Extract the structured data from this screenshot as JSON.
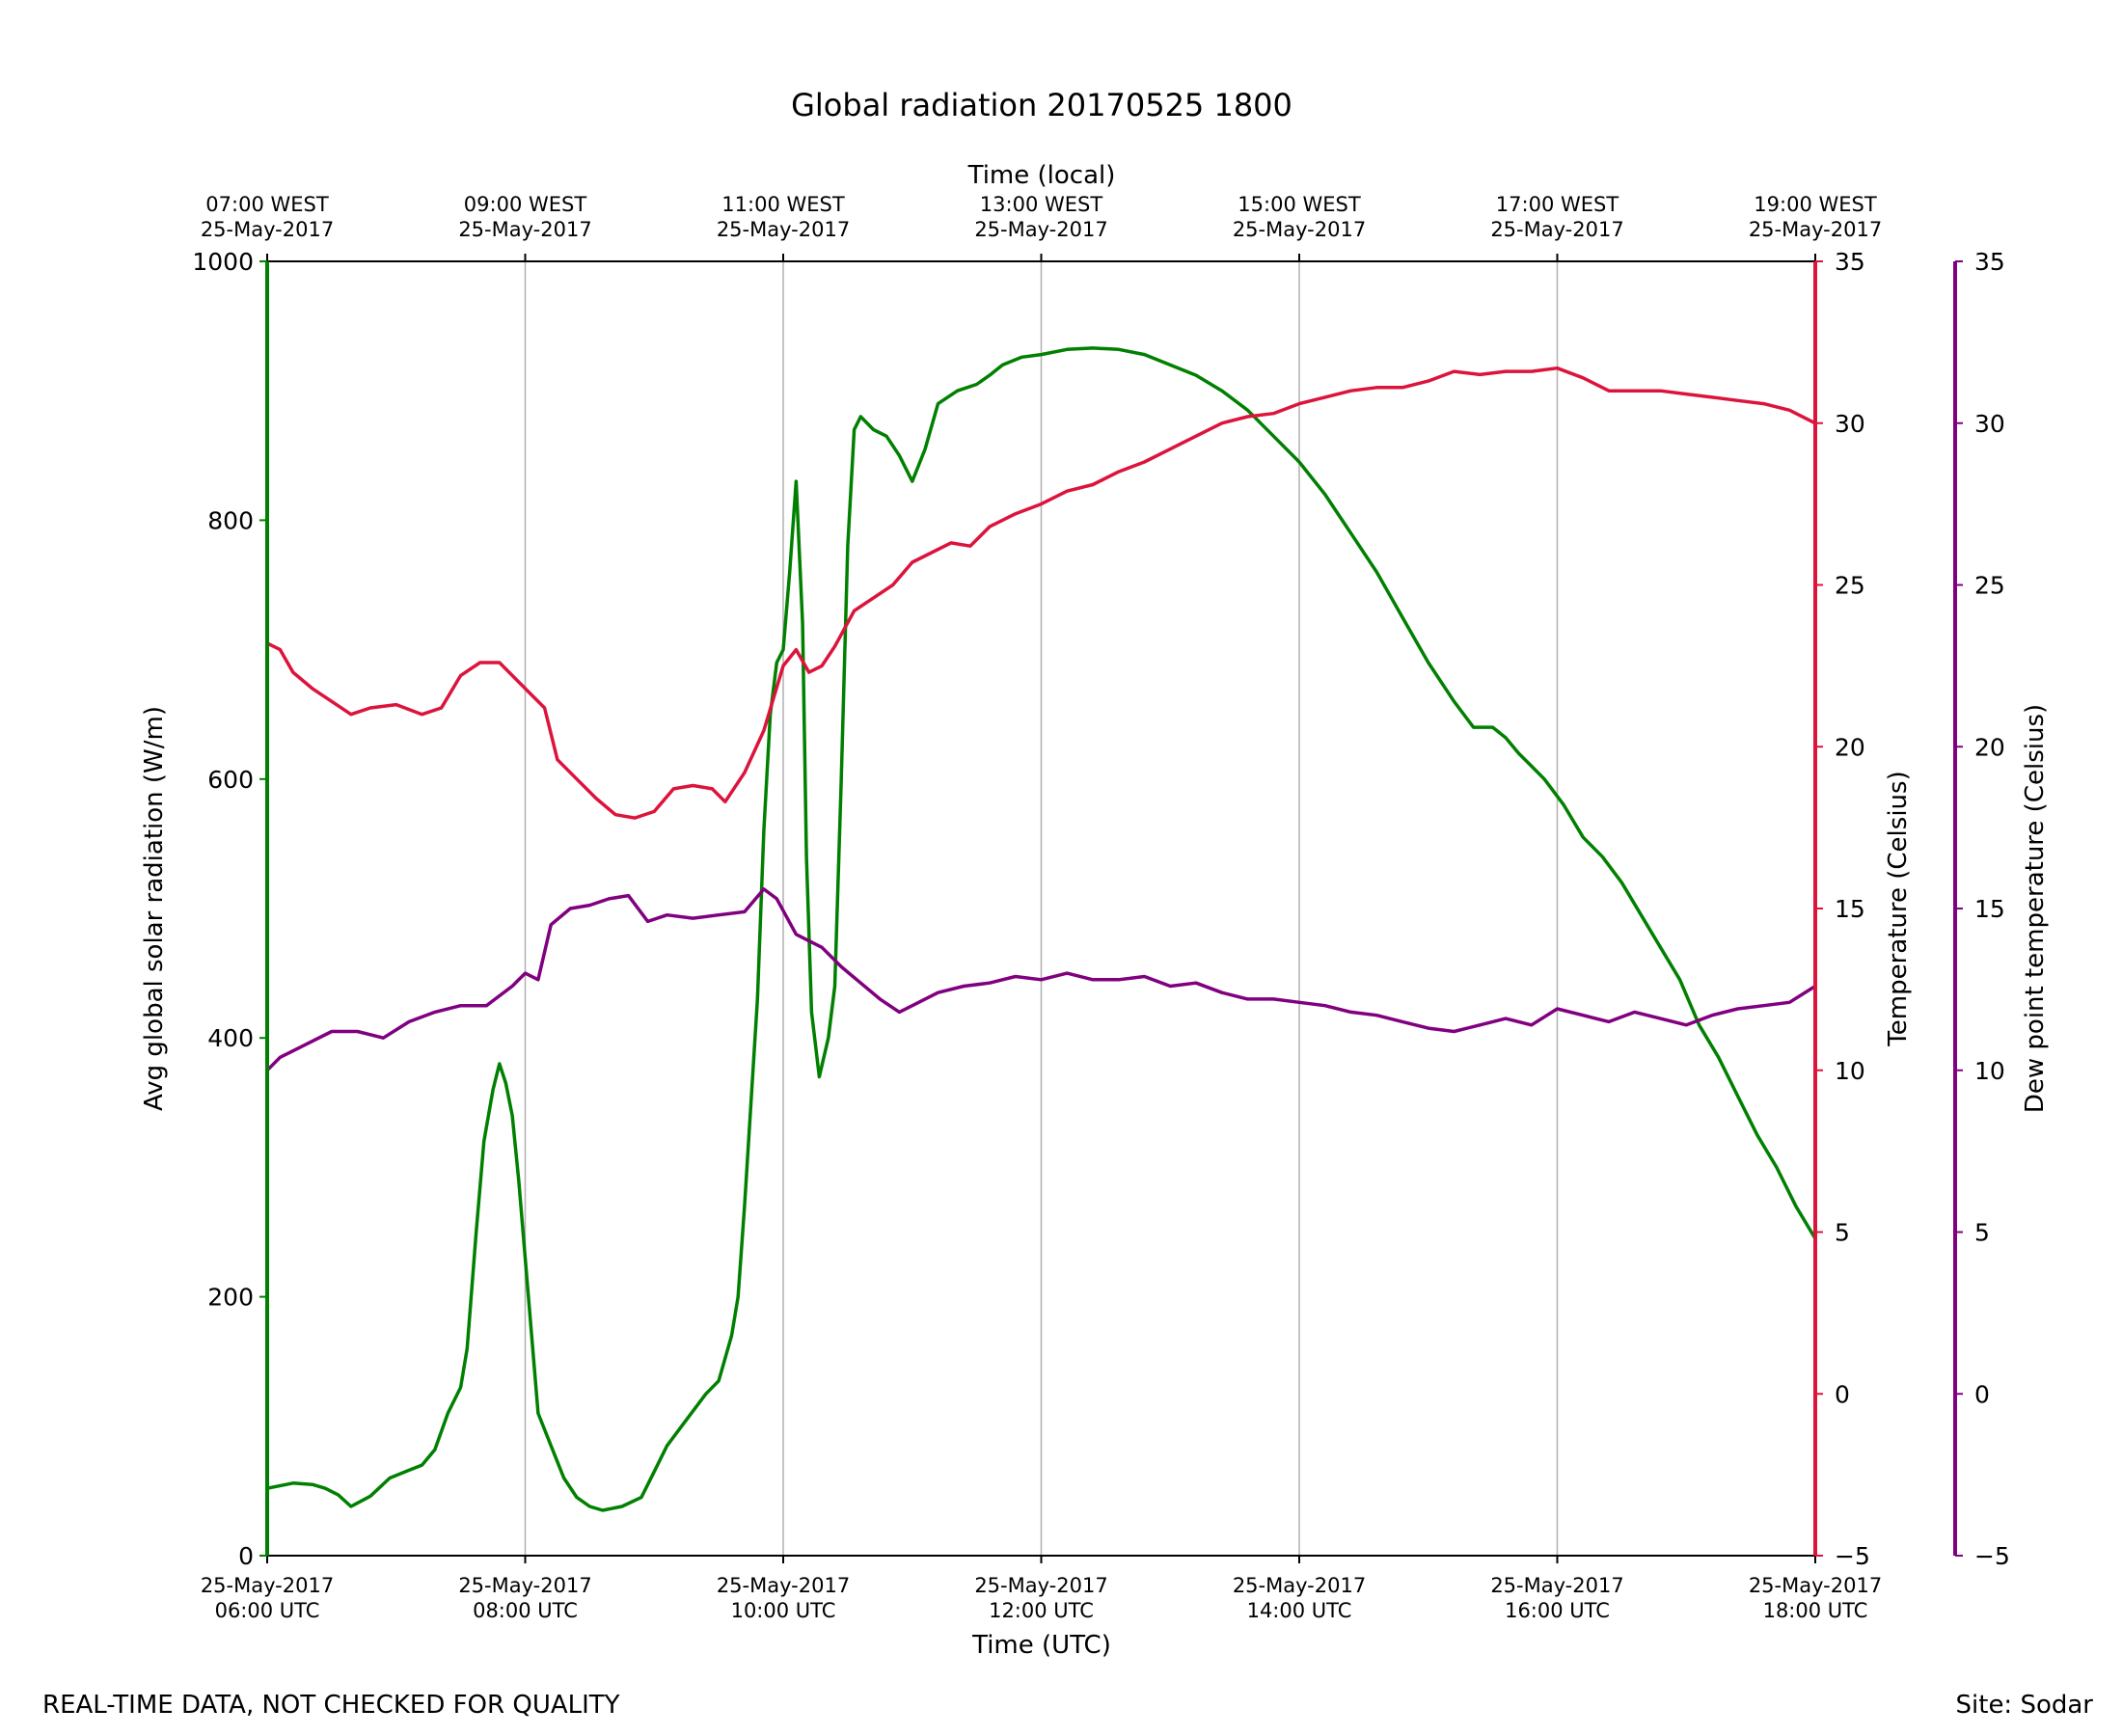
{
  "chart_data": {
    "type": "line",
    "title": "Global radiation 20170525 1800",
    "xlabel": "Time (UTC)",
    "x2label": "Time (local)",
    "xlim_utc_hours": [
      6,
      18
    ],
    "x_ticks": [
      {
        "hour": 6,
        "date": "25-May-2017",
        "utc": "06:00 UTC",
        "local": "07:00 WEST"
      },
      {
        "hour": 8,
        "date": "25-May-2017",
        "utc": "08:00 UTC",
        "local": "09:00 WEST"
      },
      {
        "hour": 10,
        "date": "25-May-2017",
        "utc": "10:00 UTC",
        "local": "11:00 WEST"
      },
      {
        "hour": 12,
        "date": "25-May-2017",
        "utc": "12:00 UTC",
        "local": "13:00 WEST"
      },
      {
        "hour": 14,
        "date": "25-May-2017",
        "utc": "14:00 UTC",
        "local": "15:00 WEST"
      },
      {
        "hour": 16,
        "date": "25-May-2017",
        "utc": "16:00 UTC",
        "local": "17:00 WEST"
      },
      {
        "hour": 18,
        "date": "25-May-2017",
        "utc": "18:00 UTC",
        "local": "19:00 WEST"
      }
    ],
    "axes": {
      "radiation": {
        "label": "Avg global solar radiation (W/m)",
        "color": "#008000",
        "ylim": [
          0,
          1000
        ],
        "ticks": [
          0,
          200,
          400,
          600,
          800,
          1000
        ]
      },
      "temperature": {
        "label": "Temperature (Celsius)",
        "color": "#dc143c",
        "ylim": [
          -5,
          35
        ],
        "ticks": [
          -5,
          0,
          5,
          10,
          15,
          20,
          25,
          30,
          35
        ]
      },
      "dewpoint": {
        "label": "Dew point temperature (Celsius)",
        "color": "#800080",
        "ylim": [
          -5,
          35
        ],
        "ticks": [
          -5,
          0,
          5,
          10,
          15,
          20,
          25,
          30,
          35
        ]
      }
    },
    "grid": "vertical",
    "series": [
      {
        "name": "Avg global solar radiation",
        "axis": "radiation",
        "color": "#008000",
        "points": [
          [
            6.0,
            52
          ],
          [
            6.2,
            56
          ],
          [
            6.35,
            55
          ],
          [
            6.45,
            52
          ],
          [
            6.55,
            47
          ],
          [
            6.65,
            38
          ],
          [
            6.8,
            46
          ],
          [
            6.95,
            60
          ],
          [
            7.1,
            66
          ],
          [
            7.2,
            70
          ],
          [
            7.3,
            82
          ],
          [
            7.4,
            110
          ],
          [
            7.5,
            130
          ],
          [
            7.55,
            160
          ],
          [
            7.62,
            250
          ],
          [
            7.68,
            320
          ],
          [
            7.75,
            360
          ],
          [
            7.8,
            380
          ],
          [
            7.85,
            365
          ],
          [
            7.9,
            340
          ],
          [
            7.95,
            290
          ],
          [
            8.0,
            230
          ],
          [
            8.05,
            170
          ],
          [
            8.1,
            110
          ],
          [
            8.2,
            85
          ],
          [
            8.3,
            60
          ],
          [
            8.4,
            45
          ],
          [
            8.5,
            38
          ],
          [
            8.6,
            35
          ],
          [
            8.75,
            38
          ],
          [
            8.9,
            45
          ],
          [
            9.0,
            65
          ],
          [
            9.1,
            85
          ],
          [
            9.25,
            105
          ],
          [
            9.4,
            125
          ],
          [
            9.5,
            135
          ],
          [
            9.6,
            170
          ],
          [
            9.65,
            200
          ],
          [
            9.7,
            270
          ],
          [
            9.75,
            350
          ],
          [
            9.8,
            430
          ],
          [
            9.85,
            560
          ],
          [
            9.9,
            650
          ],
          [
            9.95,
            690
          ],
          [
            10.0,
            700
          ],
          [
            10.05,
            760
          ],
          [
            10.1,
            830
          ],
          [
            10.15,
            720
          ],
          [
            10.18,
            540
          ],
          [
            10.22,
            420
          ],
          [
            10.28,
            370
          ],
          [
            10.35,
            400
          ],
          [
            10.4,
            440
          ],
          [
            10.45,
            600
          ],
          [
            10.5,
            780
          ],
          [
            10.55,
            870
          ],
          [
            10.6,
            880
          ],
          [
            10.7,
            870
          ],
          [
            10.8,
            865
          ],
          [
            10.9,
            850
          ],
          [
            11.0,
            830
          ],
          [
            11.1,
            855
          ],
          [
            11.2,
            890
          ],
          [
            11.35,
            900
          ],
          [
            11.5,
            905
          ],
          [
            11.6,
            912
          ],
          [
            11.7,
            920
          ],
          [
            11.85,
            926
          ],
          [
            12.0,
            928
          ],
          [
            12.2,
            932
          ],
          [
            12.4,
            933
          ],
          [
            12.6,
            932
          ],
          [
            12.8,
            928
          ],
          [
            13.0,
            920
          ],
          [
            13.2,
            912
          ],
          [
            13.4,
            900
          ],
          [
            13.6,
            885
          ],
          [
            13.8,
            865
          ],
          [
            14.0,
            845
          ],
          [
            14.2,
            820
          ],
          [
            14.4,
            790
          ],
          [
            14.6,
            760
          ],
          [
            14.8,
            725
          ],
          [
            15.0,
            690
          ],
          [
            15.2,
            660
          ],
          [
            15.35,
            640
          ],
          [
            15.5,
            640
          ],
          [
            15.6,
            632
          ],
          [
            15.7,
            620
          ],
          [
            15.8,
            610
          ],
          [
            15.9,
            600
          ],
          [
            16.05,
            580
          ],
          [
            16.2,
            555
          ],
          [
            16.35,
            540
          ],
          [
            16.5,
            520
          ],
          [
            16.65,
            495
          ],
          [
            16.8,
            470
          ],
          [
            16.95,
            445
          ],
          [
            17.1,
            410
          ],
          [
            17.25,
            385
          ],
          [
            17.4,
            355
          ],
          [
            17.55,
            325
          ],
          [
            17.7,
            300
          ],
          [
            17.85,
            270
          ],
          [
            18.0,
            245
          ]
        ]
      },
      {
        "name": "Temperature",
        "axis": "temperature",
        "color": "#dc143c",
        "points": [
          [
            6.0,
            23.2
          ],
          [
            6.1,
            23.0
          ],
          [
            6.2,
            22.3
          ],
          [
            6.35,
            21.8
          ],
          [
            6.5,
            21.4
          ],
          [
            6.65,
            21.0
          ],
          [
            6.8,
            21.2
          ],
          [
            7.0,
            21.3
          ],
          [
            7.2,
            21.0
          ],
          [
            7.35,
            21.2
          ],
          [
            7.5,
            22.2
          ],
          [
            7.65,
            22.6
          ],
          [
            7.8,
            22.6
          ],
          [
            7.95,
            22.0
          ],
          [
            8.05,
            21.6
          ],
          [
            8.15,
            21.2
          ],
          [
            8.25,
            19.6
          ],
          [
            8.4,
            19.0
          ],
          [
            8.55,
            18.4
          ],
          [
            8.7,
            17.9
          ],
          [
            8.85,
            17.8
          ],
          [
            9.0,
            18.0
          ],
          [
            9.15,
            18.7
          ],
          [
            9.3,
            18.8
          ],
          [
            9.45,
            18.7
          ],
          [
            9.55,
            18.3
          ],
          [
            9.7,
            19.2
          ],
          [
            9.85,
            20.5
          ],
          [
            10.0,
            22.5
          ],
          [
            10.1,
            23.0
          ],
          [
            10.2,
            22.3
          ],
          [
            10.3,
            22.5
          ],
          [
            10.4,
            23.1
          ],
          [
            10.55,
            24.2
          ],
          [
            10.7,
            24.6
          ],
          [
            10.85,
            25.0
          ],
          [
            11.0,
            25.7
          ],
          [
            11.15,
            26.0
          ],
          [
            11.3,
            26.3
          ],
          [
            11.45,
            26.2
          ],
          [
            11.6,
            26.8
          ],
          [
            11.8,
            27.2
          ],
          [
            12.0,
            27.5
          ],
          [
            12.2,
            27.9
          ],
          [
            12.4,
            28.1
          ],
          [
            12.6,
            28.5
          ],
          [
            12.8,
            28.8
          ],
          [
            13.0,
            29.2
          ],
          [
            13.2,
            29.6
          ],
          [
            13.4,
            30.0
          ],
          [
            13.6,
            30.2
          ],
          [
            13.8,
            30.3
          ],
          [
            14.0,
            30.6
          ],
          [
            14.2,
            30.8
          ],
          [
            14.4,
            31.0
          ],
          [
            14.6,
            31.1
          ],
          [
            14.8,
            31.1
          ],
          [
            15.0,
            31.3
          ],
          [
            15.2,
            31.6
          ],
          [
            15.4,
            31.5
          ],
          [
            15.6,
            31.6
          ],
          [
            15.8,
            31.6
          ],
          [
            16.0,
            31.7
          ],
          [
            16.2,
            31.4
          ],
          [
            16.4,
            31.0
          ],
          [
            16.6,
            31.0
          ],
          [
            16.8,
            31.0
          ],
          [
            17.0,
            30.9
          ],
          [
            17.2,
            30.8
          ],
          [
            17.4,
            30.7
          ],
          [
            17.6,
            30.6
          ],
          [
            17.8,
            30.4
          ],
          [
            18.0,
            30.0
          ]
        ]
      },
      {
        "name": "Dew point temperature",
        "axis": "dewpoint",
        "color": "#800080",
        "points": [
          [
            6.0,
            10.0
          ],
          [
            6.1,
            10.4
          ],
          [
            6.3,
            10.8
          ],
          [
            6.5,
            11.2
          ],
          [
            6.7,
            11.2
          ],
          [
            6.9,
            11.0
          ],
          [
            7.1,
            11.5
          ],
          [
            7.3,
            11.8
          ],
          [
            7.5,
            12.0
          ],
          [
            7.7,
            12.0
          ],
          [
            7.9,
            12.6
          ],
          [
            8.0,
            13.0
          ],
          [
            8.1,
            12.8
          ],
          [
            8.2,
            14.5
          ],
          [
            8.35,
            15.0
          ],
          [
            8.5,
            15.1
          ],
          [
            8.65,
            15.3
          ],
          [
            8.8,
            15.4
          ],
          [
            8.95,
            14.6
          ],
          [
            9.1,
            14.8
          ],
          [
            9.3,
            14.7
          ],
          [
            9.5,
            14.8
          ],
          [
            9.7,
            14.9
          ],
          [
            9.85,
            15.6
          ],
          [
            9.95,
            15.3
          ],
          [
            10.1,
            14.2
          ],
          [
            10.3,
            13.8
          ],
          [
            10.45,
            13.2
          ],
          [
            10.6,
            12.7
          ],
          [
            10.75,
            12.2
          ],
          [
            10.9,
            11.8
          ],
          [
            11.0,
            12.0
          ],
          [
            11.2,
            12.4
          ],
          [
            11.4,
            12.6
          ],
          [
            11.6,
            12.7
          ],
          [
            11.8,
            12.9
          ],
          [
            12.0,
            12.8
          ],
          [
            12.2,
            13.0
          ],
          [
            12.4,
            12.8
          ],
          [
            12.6,
            12.8
          ],
          [
            12.8,
            12.9
          ],
          [
            13.0,
            12.6
          ],
          [
            13.2,
            12.7
          ],
          [
            13.4,
            12.4
          ],
          [
            13.6,
            12.2
          ],
          [
            13.8,
            12.2
          ],
          [
            14.0,
            12.1
          ],
          [
            14.2,
            12.0
          ],
          [
            14.4,
            11.8
          ],
          [
            14.6,
            11.7
          ],
          [
            14.8,
            11.5
          ],
          [
            15.0,
            11.3
          ],
          [
            15.2,
            11.2
          ],
          [
            15.4,
            11.4
          ],
          [
            15.6,
            11.6
          ],
          [
            15.8,
            11.4
          ],
          [
            16.0,
            11.9
          ],
          [
            16.2,
            11.7
          ],
          [
            16.4,
            11.5
          ],
          [
            16.6,
            11.8
          ],
          [
            16.8,
            11.6
          ],
          [
            17.0,
            11.4
          ],
          [
            17.2,
            11.7
          ],
          [
            17.4,
            11.9
          ],
          [
            17.6,
            12.0
          ],
          [
            17.8,
            12.1
          ],
          [
            18.0,
            12.6
          ]
        ]
      }
    ]
  },
  "footer": {
    "left": "REAL-TIME DATA, NOT CHECKED FOR QUALITY",
    "right": "Site: Sodar"
  }
}
